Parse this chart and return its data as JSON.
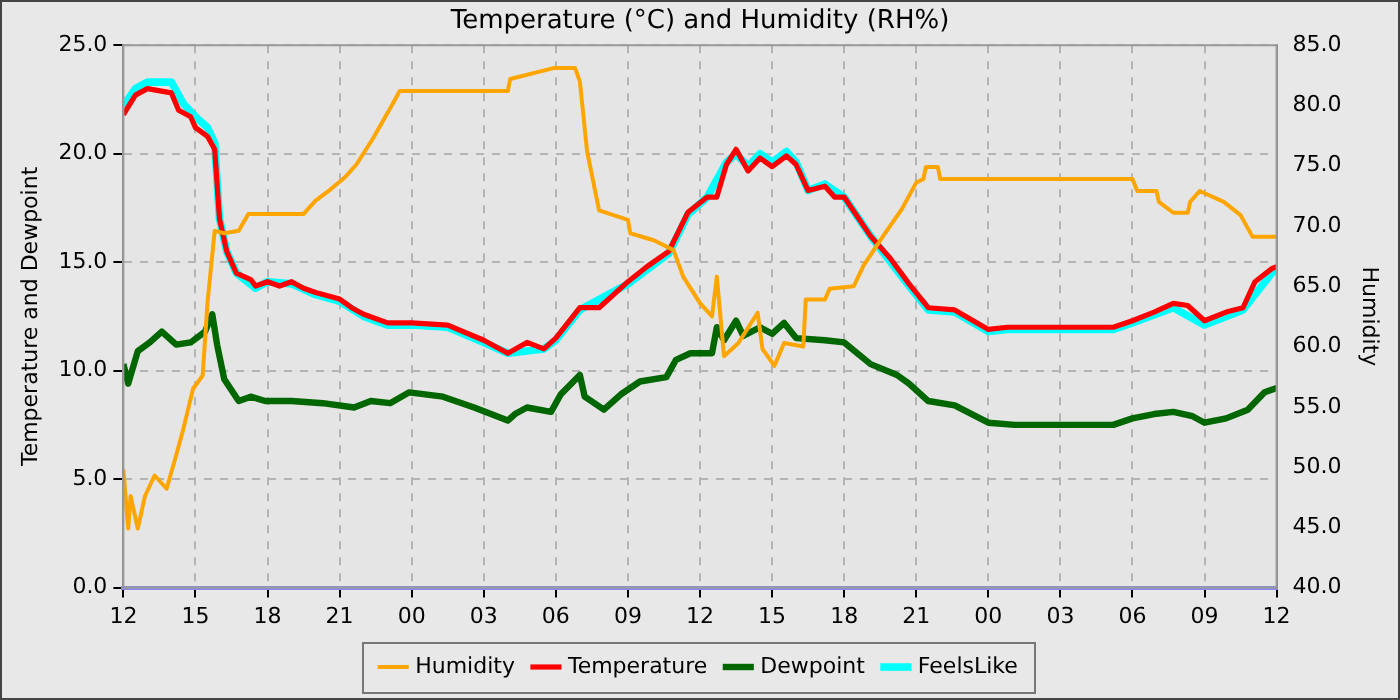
{
  "chart_data": {
    "type": "line",
    "title": "Temperature (°C) and Humidity (RH%)",
    "ylabel": "Temperature and Dewpoint",
    "y2label": "Humidity",
    "xlim": [
      12,
      60
    ],
    "xticks": [
      12,
      15,
      18,
      21,
      {
        "value": 24,
        "label": "00"
      },
      {
        "value": 27,
        "label": "03"
      },
      {
        "value": 30,
        "label": "06"
      },
      {
        "value": 33,
        "label": "09"
      },
      {
        "value": 36,
        "label": "12"
      },
      {
        "value": 39,
        "label": "15"
      },
      {
        "value": 42,
        "label": "18"
      },
      {
        "value": 45,
        "label": "21"
      },
      {
        "value": 48,
        "label": "00"
      },
      {
        "value": 51,
        "label": "03"
      },
      {
        "value": 54,
        "label": "06"
      },
      {
        "value": 57,
        "label": "09"
      },
      {
        "value": 60,
        "label": "12"
      }
    ],
    "ylim": [
      0,
      25
    ],
    "yticks": [
      {
        "value": 0,
        "label": "0.0"
      },
      {
        "value": 5,
        "label": "5.0"
      },
      {
        "value": 10,
        "label": "10.0"
      },
      {
        "value": 15,
        "label": "15.0"
      },
      {
        "value": 20,
        "label": "20.0"
      },
      {
        "value": 25,
        "label": "25.0"
      }
    ],
    "y2lim": [
      40,
      85
    ],
    "y2ticks": [
      {
        "value": 40,
        "label": "40.0"
      },
      {
        "value": 45,
        "label": "45.0"
      },
      {
        "value": 50,
        "label": "50.0"
      },
      {
        "value": 55,
        "label": "55.0"
      },
      {
        "value": 60,
        "label": "60.0"
      },
      {
        "value": 65,
        "label": "65.0"
      },
      {
        "value": 70,
        "label": "70.0"
      },
      {
        "value": 75,
        "label": "75.0"
      },
      {
        "value": 80,
        "label": "80.0"
      },
      {
        "value": 85,
        "label": "85.0"
      }
    ],
    "grid": true,
    "legend": "bottom",
    "marker": "none",
    "line_style": "solid",
    "series": [
      {
        "name": "FeelsLike",
        "color": "#00ffff",
        "x": [
          12,
          12.5,
          13,
          14,
          14.5,
          15,
          15.5,
          15.8,
          16,
          16.3,
          16.7,
          17.5,
          18,
          19,
          20,
          21,
          22,
          23,
          24,
          25.5,
          27,
          28,
          29.5,
          30,
          31,
          33,
          34.7,
          35.5,
          36.3,
          37.1,
          37.5,
          38,
          38.5,
          39,
          39.6,
          40,
          40.5,
          41.2,
          42,
          43.1,
          44.7,
          45.5,
          46.6,
          48,
          48.8,
          53.2,
          54,
          55.7,
          57,
          58.6,
          59.8,
          60
        ],
        "values": [
          22.2,
          23.0,
          23.3,
          23.3,
          22.3,
          21.7,
          21.2,
          20.5,
          17.0,
          15.5,
          14.5,
          13.8,
          14.1,
          14.0,
          13.5,
          13.2,
          12.5,
          12.1,
          12.1,
          12.0,
          11.3,
          10.8,
          11.0,
          11.4,
          12.8,
          14.0,
          15.4,
          17.2,
          18.0,
          19.6,
          20.0,
          19.4,
          20.0,
          19.6,
          20.1,
          19.6,
          18.3,
          18.6,
          18.0,
          16.2,
          13.9,
          12.8,
          12.7,
          11.8,
          11.9,
          11.9,
          12.2,
          12.9,
          12.1,
          12.8,
          14.5,
          14.7
        ]
      },
      {
        "name": "Dewpoint",
        "color": "#006600",
        "x": [
          12,
          12.2,
          12.6,
          13.1,
          13.6,
          14.2,
          14.8,
          15.4,
          15.7,
          15.9,
          16.2,
          16.8,
          17.3,
          17.9,
          19,
          20.3,
          21.6,
          22.3,
          23.1,
          23.9,
          25.3,
          26.6,
          28,
          28.3,
          28.8,
          29.8,
          30.2,
          31,
          31.2,
          32,
          32.7,
          33.5,
          34.6,
          35,
          35.6,
          36.5,
          36.7,
          37,
          37.5,
          37.8,
          38.5,
          39,
          39.5,
          40,
          41.2,
          42,
          43.1,
          44.2,
          44.7,
          45.5,
          46.6,
          48,
          49.1,
          53.2,
          54,
          54.9,
          55.7,
          56.5,
          57,
          57.9,
          58.8,
          59.5,
          60
        ],
        "values": [
          10.3,
          9.4,
          10.9,
          11.3,
          11.8,
          11.2,
          11.3,
          11.8,
          12.6,
          11.2,
          9.6,
          8.6,
          8.8,
          8.6,
          8.6,
          8.5,
          8.3,
          8.6,
          8.5,
          9.0,
          8.8,
          8.3,
          7.7,
          8.0,
          8.3,
          8.1,
          8.9,
          9.8,
          8.8,
          8.2,
          8.9,
          9.5,
          9.7,
          10.5,
          10.8,
          10.8,
          12.0,
          11.4,
          12.3,
          11.6,
          12.0,
          11.7,
          12.2,
          11.5,
          11.4,
          11.3,
          10.3,
          9.8,
          9.4,
          8.6,
          8.4,
          7.6,
          7.5,
          7.5,
          7.8,
          8.0,
          8.1,
          7.9,
          7.6,
          7.8,
          8.2,
          9.0,
          9.2
        ]
      },
      {
        "name": "Temperature",
        "color": "#ff0000",
        "x": [
          12,
          12.5,
          13,
          14,
          14.3,
          14.8,
          15,
          15.5,
          15.8,
          16,
          16.3,
          16.7,
          17.3,
          17.5,
          18,
          18.5,
          19,
          19.5,
          20,
          21,
          21.5,
          22,
          23,
          24,
          25.5,
          27,
          28,
          28.8,
          29.5,
          30,
          31,
          31.8,
          33,
          33.8,
          34.7,
          35.5,
          36.3,
          36.7,
          37.1,
          37.5,
          38,
          38.5,
          39,
          39.6,
          40,
          40.5,
          41.2,
          41.6,
          42,
          43.1,
          43.9,
          44.7,
          45.5,
          46.6,
          48,
          48.8,
          53.2,
          54,
          54.9,
          55.7,
          56.3,
          57,
          57.9,
          58.6,
          59.1,
          59.8,
          60
        ],
        "values": [
          21.8,
          22.7,
          23.0,
          22.8,
          22.0,
          21.7,
          21.2,
          20.8,
          20.2,
          17.0,
          15.5,
          14.5,
          14.2,
          13.9,
          14.1,
          13.9,
          14.1,
          13.8,
          13.6,
          13.3,
          12.9,
          12.6,
          12.2,
          12.2,
          12.1,
          11.4,
          10.8,
          11.3,
          11.0,
          11.5,
          12.9,
          12.9,
          14.1,
          14.8,
          15.5,
          17.3,
          18.0,
          18.0,
          19.5,
          20.2,
          19.2,
          19.8,
          19.4,
          19.9,
          19.5,
          18.3,
          18.5,
          18.0,
          18.0,
          16.2,
          15.2,
          14.0,
          12.9,
          12.8,
          11.9,
          12.0,
          12.0,
          12.3,
          12.7,
          13.1,
          13.0,
          12.3,
          12.7,
          12.9,
          14.1,
          14.7,
          14.8
        ]
      },
      {
        "name": "Humidity",
        "color": "#ffa500",
        "axis": "y2",
        "x": [
          12,
          12.2,
          12.3,
          12.6,
          12.9,
          13.3,
          13.8,
          14.2,
          14.5,
          14.9,
          15.3,
          15.5,
          15.8,
          16.2,
          16.8,
          17.2,
          19.5,
          20,
          20.6,
          21.2,
          21.7,
          22.4,
          23.2,
          23.5,
          28.0,
          28.1,
          29.9,
          30.8,
          31,
          31.3,
          31.8,
          33,
          33.1,
          34.1,
          34.9,
          35.3,
          36,
          36.5,
          36.7,
          37,
          37.6,
          38.4,
          38.6,
          39.1,
          39.5,
          40.3,
          40.4,
          41.2,
          41.4,
          42.4,
          42.8,
          43.6,
          44.4,
          45,
          45.3,
          45.4,
          45.9,
          46,
          54,
          54.2,
          55,
          55.1,
          55.7,
          56.3,
          56.4,
          56.8,
          57.8,
          58.5,
          59,
          60
        ],
        "values": [
          49.8,
          44.9,
          47.6,
          44.9,
          47.6,
          49.3,
          48.2,
          51.0,
          53.2,
          56.5,
          57.6,
          63.6,
          69.6,
          69.4,
          69.6,
          71.0,
          71.0,
          72.1,
          73.0,
          74.0,
          75.1,
          77.3,
          80.1,
          81.2,
          81.2,
          82.2,
          83.1,
          83.1,
          82.0,
          76.2,
          71.3,
          70.5,
          69.4,
          68.8,
          68.0,
          65.8,
          63.6,
          62.5,
          65.8,
          59.2,
          60.3,
          62.8,
          59.8,
          58.4,
          60.3,
          60.0,
          63.9,
          63.9,
          64.8,
          65.0,
          66.7,
          69.1,
          71.4,
          73.6,
          73.9,
          74.9,
          74.9,
          73.9,
          73.9,
          72.9,
          72.9,
          72.0,
          71.1,
          71.1,
          72.0,
          72.9,
          72.0,
          70.9,
          69.1,
          69.1
        ]
      }
    ]
  }
}
